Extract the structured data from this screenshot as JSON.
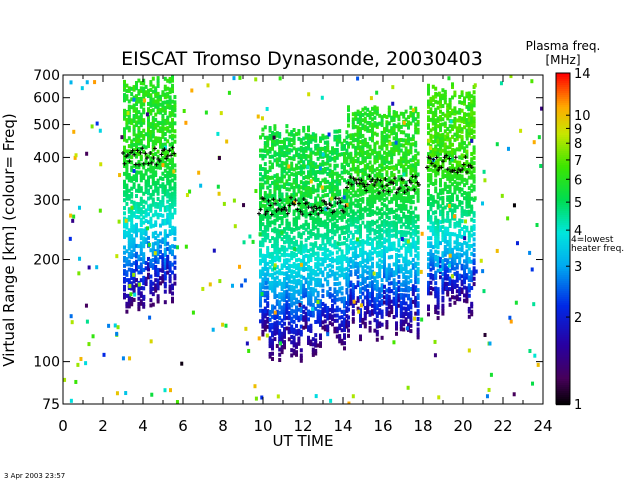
{
  "chart_data": {
    "type": "heatmap",
    "title": "EISCAT Tromso Dynasonde,  20030403",
    "xlabel": "UT TIME",
    "ylabel": "Virtual Range [km]   (colour= Freq)",
    "x_ticks": [
      "0",
      "2",
      "4",
      "6",
      "8",
      "10",
      "12",
      "14",
      "16",
      "18",
      "20",
      "22",
      "24"
    ],
    "y_ticks": [
      "75",
      "100",
      "200",
      "300",
      "400",
      "500",
      "600",
      "700"
    ],
    "y_scale": "log",
    "xlim": [
      0,
      24
    ],
    "ylim": [
      75,
      700
    ],
    "colorbar": {
      "title": "Plasma freq.",
      "unit": "[MHz]",
      "ticks": [
        "1",
        "2",
        "3",
        "4",
        "5",
        "6",
        "7",
        "8",
        "9",
        "10",
        "14"
      ],
      "note": "4=lowest heater freq.",
      "note_line1": "4=lowest",
      "note_line2": "heater freq.",
      "range": [
        1,
        14
      ]
    },
    "profile_peaks": [
      {
        "t_start": 3.0,
        "t_end": 5.6,
        "range_km": 400,
        "freq_mhz": 6.0
      },
      {
        "t_start": 9.8,
        "t_end": 14.2,
        "range_km": 285,
        "freq_mhz": 5.5
      },
      {
        "t_start": 14.2,
        "t_end": 17.8,
        "range_km": 330,
        "freq_mhz": 6.0
      },
      {
        "t_start": 18.2,
        "t_end": 20.5,
        "range_km": 380,
        "freq_mhz": 6.5
      }
    ],
    "grid": false,
    "legend": "none"
  },
  "footer": {
    "timestamp": "3 Apr 2003 23:57"
  }
}
